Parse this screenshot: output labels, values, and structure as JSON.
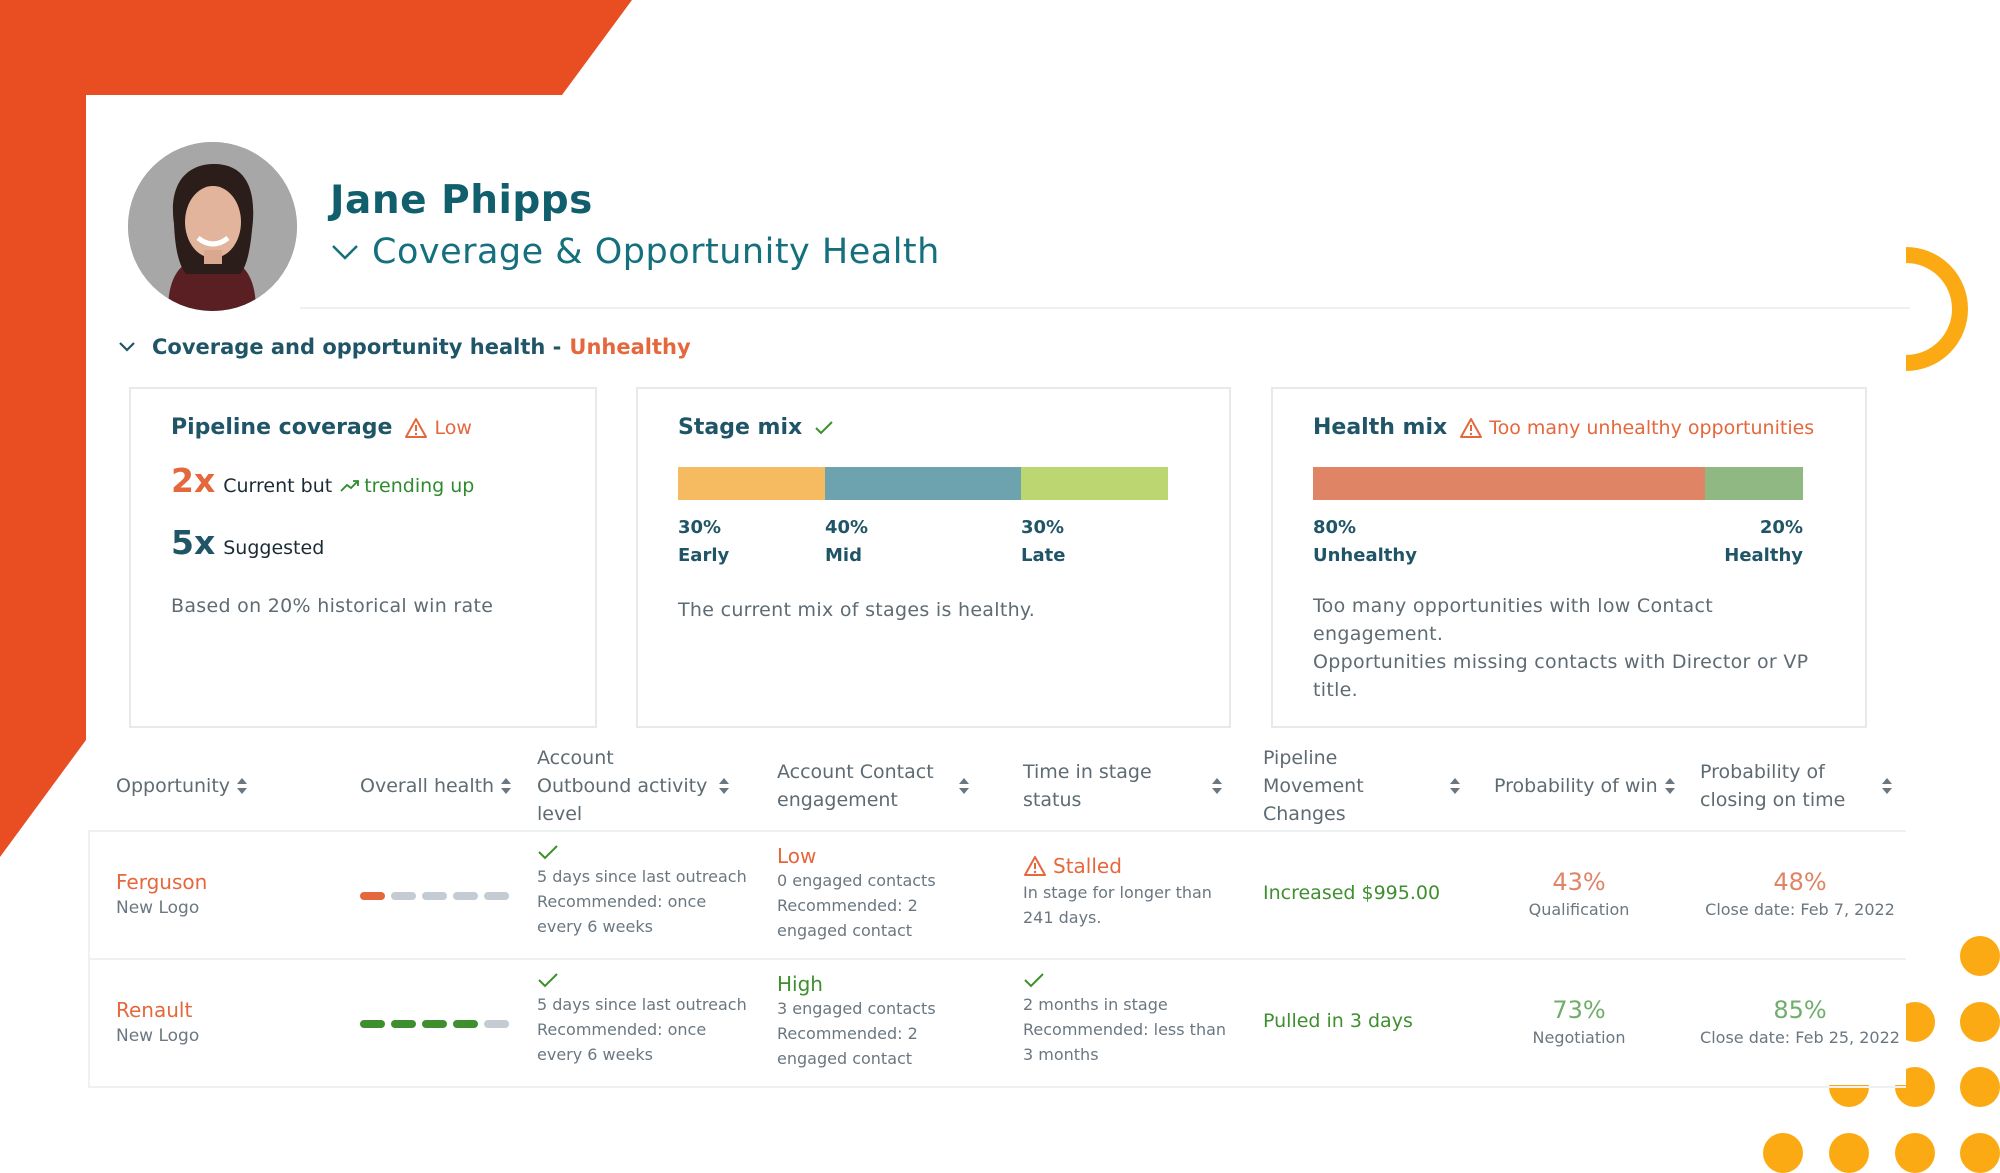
{
  "header": {
    "user_name": "Jane Phipps",
    "dashboard_title": "Coverage & Opportunity Health"
  },
  "section": {
    "label": "Coverage and opportunity health -",
    "status": "Unhealthy"
  },
  "colors": {
    "brand_orange": "#e84e22",
    "accent_yellow": "#fbaa14",
    "teal_dark": "#1f5566",
    "warning": "#e5673c",
    "positive": "#3f8f2f"
  },
  "cards": {
    "pipeline": {
      "title": "Pipeline coverage",
      "status": "Low",
      "current_value": "2x",
      "current_label": "Current but",
      "trend_label": "trending up",
      "suggested_value": "5x",
      "suggested_label": "Suggested",
      "note": "Based on 20% historical win rate"
    },
    "stage_mix": {
      "title": "Stage mix",
      "segments": [
        {
          "pct_label": "30%",
          "name": "Early",
          "share": 0.3,
          "color": "#f6bb60"
        },
        {
          "pct_label": "40%",
          "name": "Mid",
          "share": 0.4,
          "color": "#6da3ae"
        },
        {
          "pct_label": "30%",
          "name": "Late",
          "share": 0.3,
          "color": "#bcd672"
        }
      ],
      "note": "The current mix of stages is healthy."
    },
    "health_mix": {
      "title": "Health mix",
      "status": "Too many unhealthy opportunities",
      "segments": [
        {
          "pct_label": "80%",
          "name": "Unhealthy",
          "share": 0.8,
          "color": "#e08466"
        },
        {
          "pct_label": "20%",
          "name": "Healthy",
          "share": 0.2,
          "color": "#8fb882"
        }
      ],
      "note_line_1": "Too many opportunities with low Contact engagement.",
      "note_line_2": "Opportunities missing contacts with Director or VP title."
    }
  },
  "table": {
    "headers": [
      "Opportunity",
      "Overall health",
      "Account Outbound activity level",
      "Account Contact engagement",
      "Time in stage status",
      "Pipeline Movement Changes",
      "Probability of win",
      "Probability of closing on time"
    ],
    "rows": [
      {
        "name": "Ferguson",
        "type": "New Logo",
        "health_score": 1,
        "activity_line_1": "5 days since last outreach",
        "activity_line_2": "Recommended: once every 6 weeks",
        "engagement_status": "Low",
        "engagement_line_1": "0 engaged contacts",
        "engagement_line_2": "Recommended: 2 engaged contact",
        "stage_status": "Stalled",
        "stage_line": "In stage for longer than 241 days.",
        "pipeline": "Increased $995.00",
        "win_prob": "43%",
        "win_stage": "Qualification",
        "close_prob": "48%",
        "close_date": "Close date: Feb 7, 2022"
      },
      {
        "name": "Renault",
        "type": "New Logo",
        "health_score": 4,
        "activity_line_1": "5 days since last outreach",
        "activity_line_2": "Recommended: once every 6 weeks",
        "engagement_status": "High",
        "engagement_line_1": "3 engaged contacts",
        "engagement_line_2": "Recommended: 2 engaged contact",
        "stage_status": "",
        "stage_line": "2 months in stage Recommended: less than 3 months",
        "pipeline": "Pulled in 3 days",
        "win_prob": "73%",
        "win_stage": "Negotiation",
        "close_prob": "85%",
        "close_date": "Close date: Feb 25, 2022"
      }
    ]
  }
}
